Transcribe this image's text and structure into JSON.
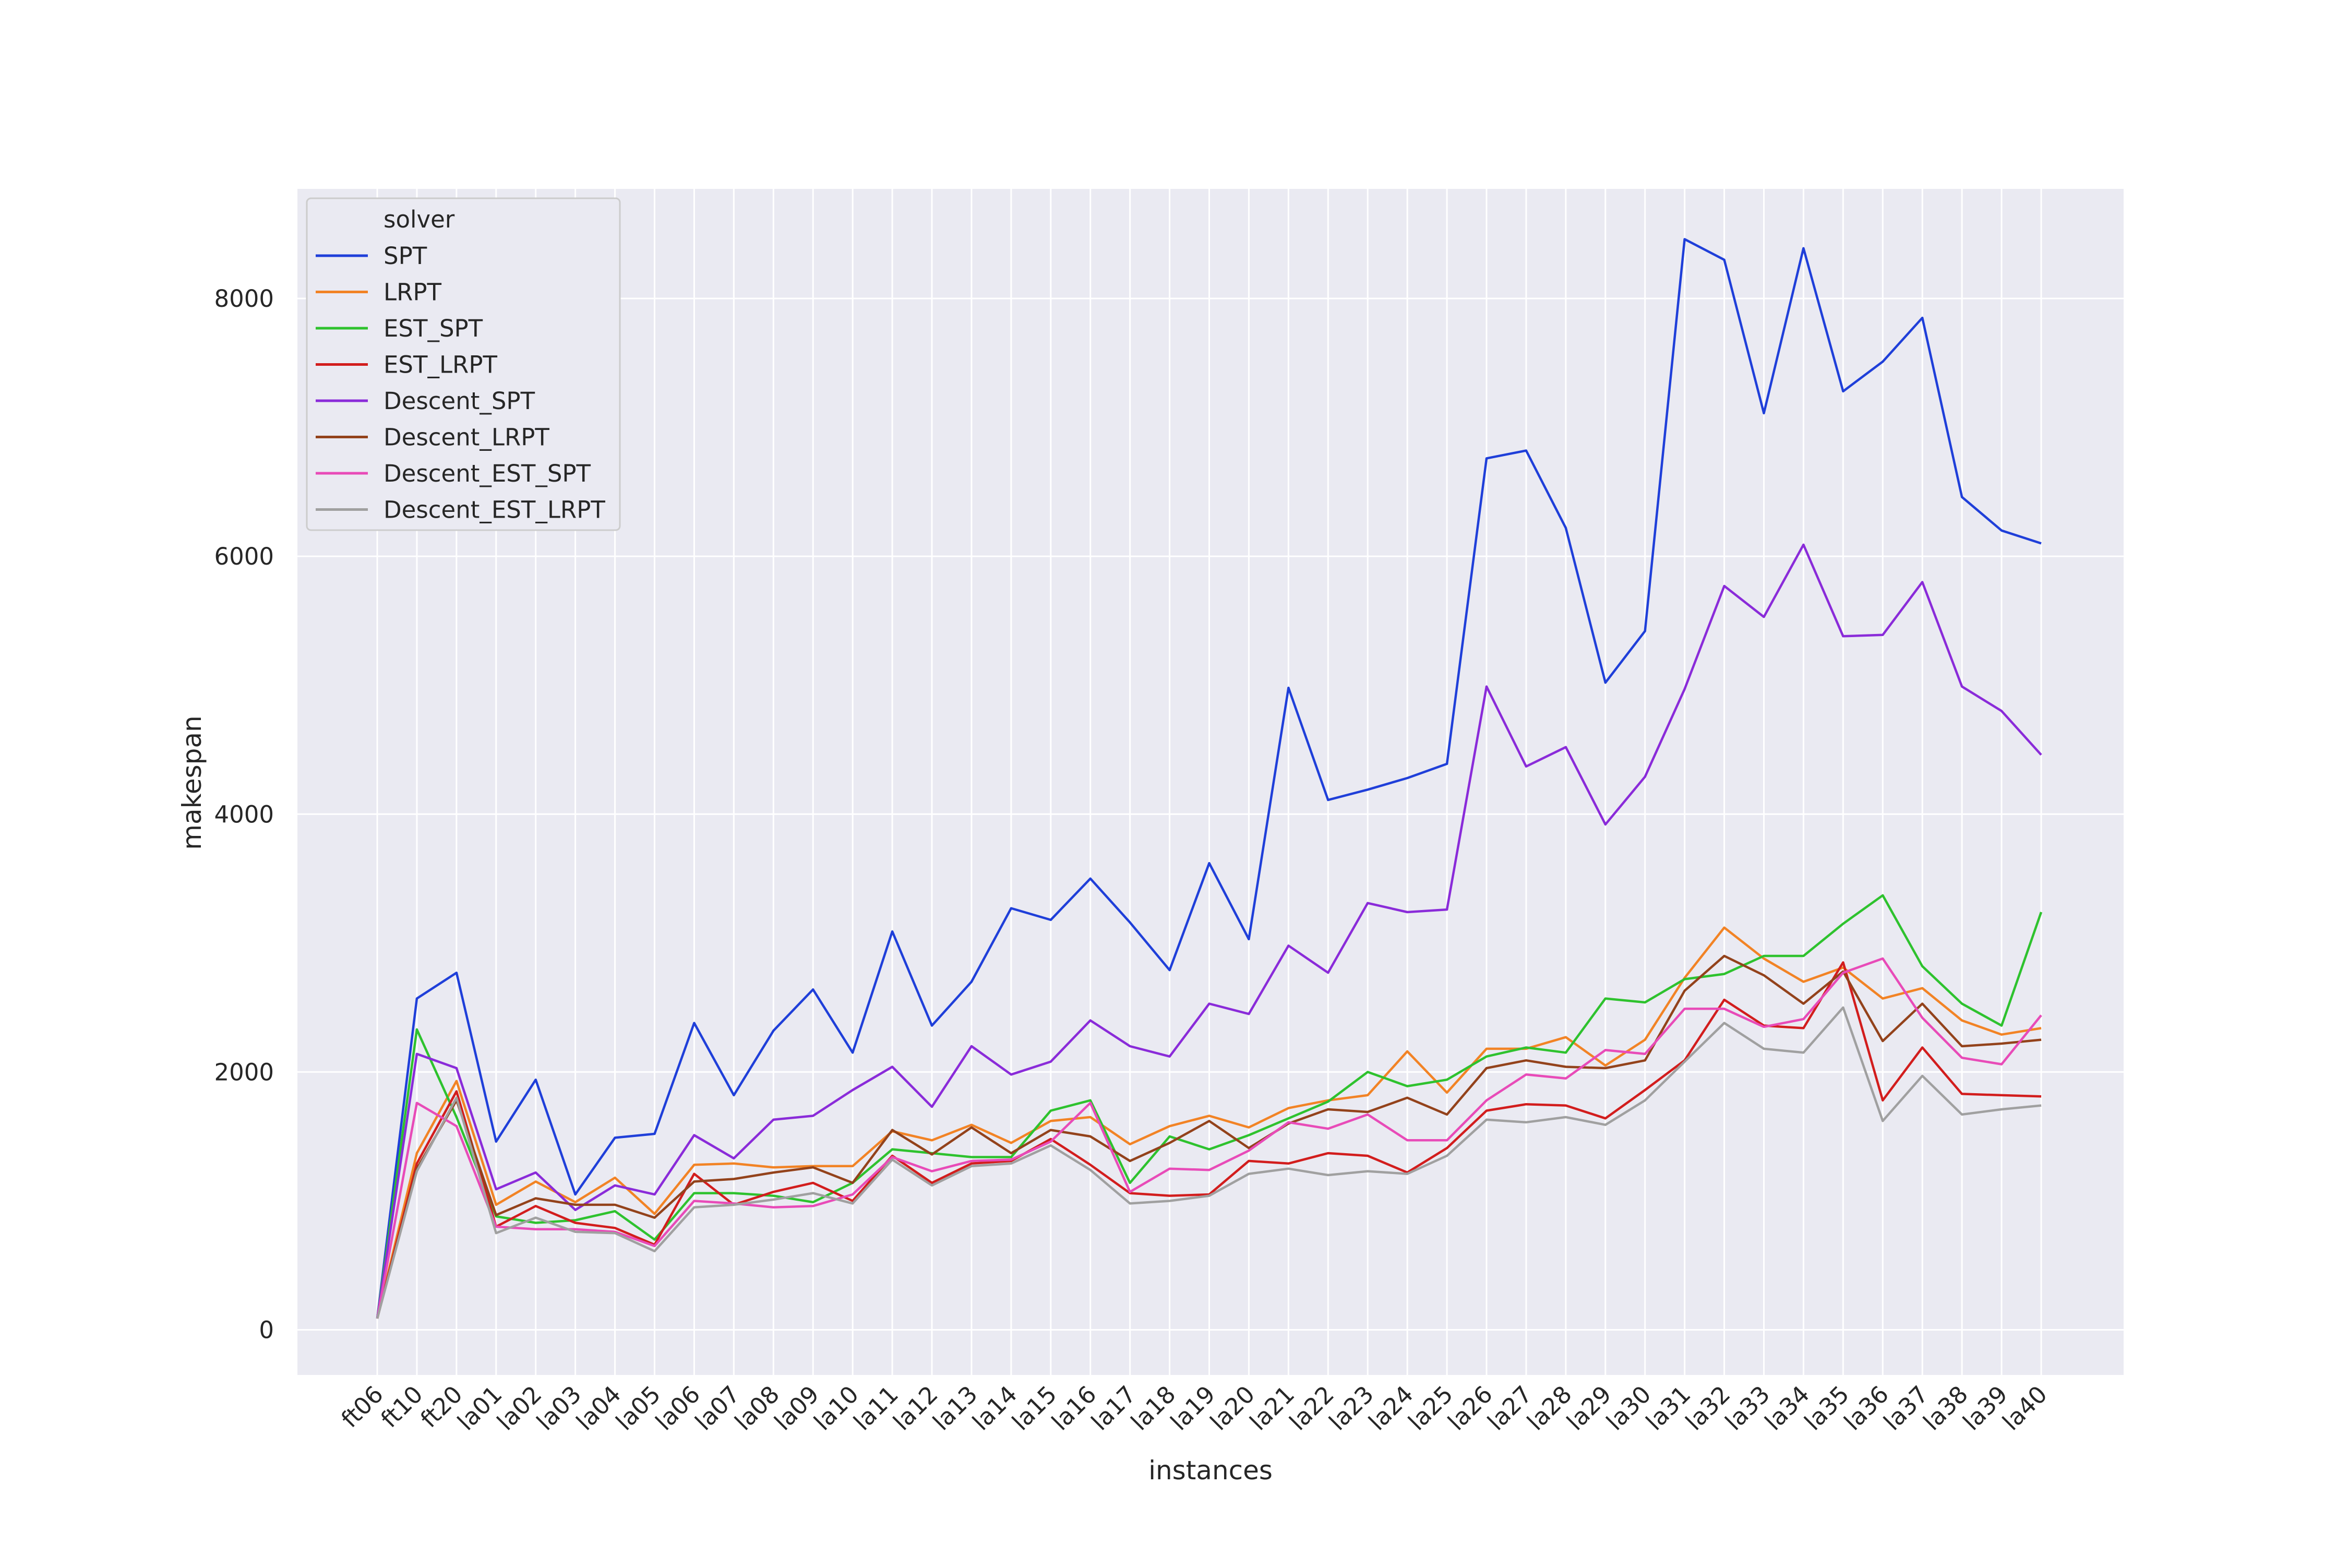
{
  "chart_data": {
    "type": "line",
    "xlabel": "instances",
    "ylabel": "makespan",
    "ylim": [
      -350,
      8850
    ],
    "yticks": [
      0,
      2000,
      4000,
      6000,
      8000
    ],
    "grid": true,
    "legend": {
      "title": "solver",
      "placement": "top-left"
    },
    "categories": [
      "ft06",
      "ft10",
      "ft20",
      "la01",
      "la02",
      "la03",
      "la04",
      "la05",
      "la06",
      "la07",
      "la08",
      "la09",
      "la10",
      "la11",
      "la12",
      "la13",
      "la14",
      "la15",
      "la16",
      "la17",
      "la18",
      "la19",
      "la20",
      "la21",
      "la22",
      "la23",
      "la24",
      "la25",
      "la26",
      "la27",
      "la28",
      "la29",
      "la30",
      "la31",
      "la32",
      "la33",
      "la34",
      "la35",
      "la36",
      "la37",
      "la38",
      "la39",
      "la40"
    ],
    "series": [
      {
        "name": "SPT",
        "color": "#1f3fd9",
        "values": [
          88,
          2570,
          2770,
          1460,
          1940,
          1050,
          1490,
          1520,
          2380,
          1820,
          2320,
          2640,
          2150,
          3090,
          2360,
          2700,
          3270,
          3180,
          3500,
          3160,
          2790,
          3620,
          3030,
          4980,
          4110,
          4190,
          4280,
          4390,
          6760,
          6820,
          6220,
          5020,
          5420,
          8460,
          8300,
          7110,
          8390,
          7280,
          7510,
          7850,
          6460,
          6200,
          6100
        ]
      },
      {
        "name": "LRPT",
        "color": "#f28325",
        "values": [
          88,
          1370,
          1930,
          970,
          1150,
          990,
          1180,
          900,
          1280,
          1290,
          1260,
          1270,
          1270,
          1540,
          1470,
          1590,
          1450,
          1620,
          1650,
          1440,
          1580,
          1660,
          1570,
          1720,
          1780,
          1820,
          2160,
          1840,
          2180,
          2180,
          2270,
          2050,
          2250,
          2730,
          3120,
          2880,
          2700,
          2810,
          2570,
          2650,
          2400,
          2290,
          2340
        ]
      },
      {
        "name": "EST_SPT",
        "color": "#2ec22e",
        "values": [
          88,
          2330,
          1650,
          880,
          830,
          850,
          920,
          700,
          1060,
          1060,
          1040,
          990,
          1140,
          1400,
          1370,
          1340,
          1340,
          1700,
          1780,
          1140,
          1500,
          1400,
          1510,
          1640,
          1770,
          2000,
          1890,
          1940,
          2120,
          2190,
          2150,
          2570,
          2540,
          2720,
          2760,
          2900,
          2900,
          3150,
          3370,
          2820,
          2530,
          2360,
          3240
        ]
      },
      {
        "name": "EST_LRPT",
        "color": "#d21d1d",
        "values": [
          88,
          1290,
          1850,
          800,
          960,
          830,
          790,
          660,
          1210,
          970,
          1070,
          1140,
          1000,
          1350,
          1140,
          1290,
          1310,
          1480,
          1280,
          1060,
          1040,
          1050,
          1310,
          1290,
          1370,
          1350,
          1220,
          1410,
          1700,
          1750,
          1740,
          1640,
          1860,
          2090,
          2560,
          2360,
          2340,
          2850,
          1780,
          2190,
          1830,
          1820,
          1810
        ]
      },
      {
        "name": "Descent_SPT",
        "color": "#8a2bd9",
        "values": [
          88,
          2140,
          2030,
          1090,
          1220,
          930,
          1120,
          1050,
          1510,
          1330,
          1630,
          1660,
          1860,
          2040,
          1730,
          2200,
          1980,
          2080,
          2400,
          2200,
          2120,
          2530,
          2450,
          2980,
          2770,
          3310,
          3240,
          3260,
          4990,
          4370,
          4520,
          3920,
          4290,
          4970,
          5770,
          5530,
          6090,
          5380,
          5390,
          5800,
          4990,
          4800,
          4460
        ]
      },
      {
        "name": "Descent_LRPT",
        "color": "#93421b",
        "values": [
          88,
          1250,
          1780,
          890,
          1020,
          970,
          970,
          870,
          1150,
          1170,
          1220,
          1260,
          1140,
          1550,
          1360,
          1570,
          1370,
          1550,
          1500,
          1310,
          1450,
          1620,
          1410,
          1600,
          1710,
          1690,
          1800,
          1670,
          2030,
          2090,
          2040,
          2030,
          2090,
          2630,
          2900,
          2750,
          2530,
          2780,
          2240,
          2530,
          2200,
          2220,
          2250
        ]
      },
      {
        "name": "Descent_EST_SPT",
        "color": "#e84bb8",
        "values": [
          88,
          1760,
          1580,
          800,
          780,
          780,
          760,
          650,
          1000,
          980,
          950,
          960,
          1050,
          1340,
          1230,
          1310,
          1320,
          1460,
          1760,
          1070,
          1250,
          1240,
          1390,
          1610,
          1560,
          1670,
          1470,
          1470,
          1780,
          1980,
          1950,
          2170,
          2140,
          2490,
          2490,
          2350,
          2410,
          2770,
          2880,
          2420,
          2110,
          2060,
          2440
        ]
      },
      {
        "name": "Descent_EST_LRPT",
        "color": "#a0a0a0",
        "values": [
          88,
          1230,
          1800,
          750,
          870,
          760,
          750,
          610,
          950,
          970,
          1010,
          1060,
          980,
          1320,
          1120,
          1270,
          1290,
          1430,
          1240,
          980,
          1000,
          1040,
          1210,
          1250,
          1200,
          1230,
          1210,
          1350,
          1630,
          1610,
          1650,
          1590,
          1780,
          2080,
          2380,
          2180,
          2150,
          2500,
          1620,
          1970,
          1670,
          1710,
          1740
        ]
      }
    ]
  }
}
